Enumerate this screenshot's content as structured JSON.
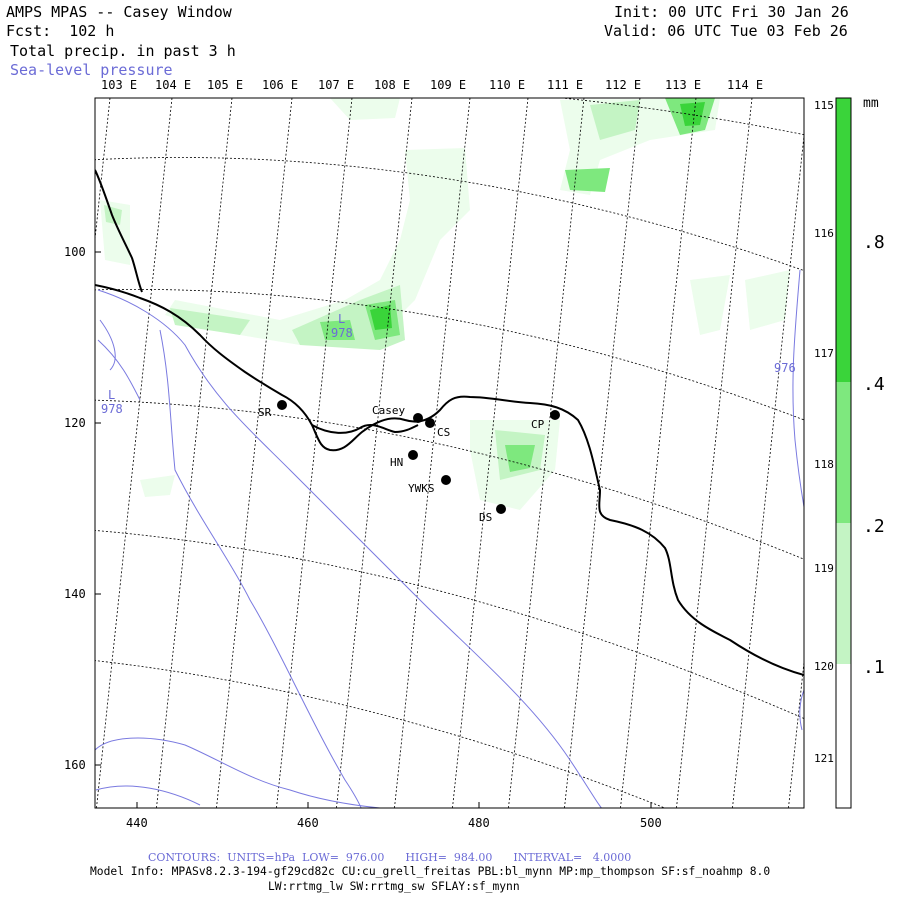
{
  "header": {
    "title": "AMPS MPAS -- Casey Window",
    "fcst": "Fcst:  102 h",
    "field": "Total precip. in past 3 h",
    "contour_field": "Sea-level pressure",
    "init": "Init: 00 UTC Fri 30 Jan 26",
    "valid": "Valid: 06 UTC Tue 03 Feb 26"
  },
  "map": {
    "lon_labels": [
      "103 E",
      "104 E",
      "105 E",
      "106 E",
      "107 E",
      "108 E",
      "109 E",
      "110 E",
      "111 E",
      "112 E",
      "113 E",
      "114 E"
    ],
    "lat_labels": [
      "115 E",
      "116 E",
      "117 E",
      "118 E",
      "119 E",
      "120 E",
      "121 E"
    ],
    "x_ticks": [
      "440",
      "460",
      "480",
      "500"
    ],
    "y_ticks": [
      "100",
      "120",
      "140",
      "160"
    ],
    "stations": [
      {
        "name": "Casey"
      },
      {
        "name": "CS"
      },
      {
        "name": "SR"
      },
      {
        "name": "CP"
      },
      {
        "name": "HN"
      },
      {
        "name": "YWKS"
      },
      {
        "name": "DS"
      }
    ],
    "lows": [
      {
        "symbol": "L",
        "value": "978"
      },
      {
        "symbol": "L",
        "value": "978"
      }
    ],
    "contour_label": "976"
  },
  "colorbar": {
    "unit": "mm",
    "labels": [
      ".8",
      ".4",
      ".2",
      ".1"
    ],
    "colors": [
      "#3ad43a",
      "#7ee87e",
      "#c4f4c4",
      "#ecfdec",
      "#ffffff"
    ]
  },
  "footer": {
    "contours": "CONTOURS:  UNITS=hPa  LOW=  976.00      HIGH=  984.00      INTERVAL=   4.0000",
    "model_info": "Model Info: MPASv8.2.3-194-gf29cd82c CU:cu_grell_freitas PBL:bl_mynn MP:mp_thompson SF:sf_noahmp 8.0",
    "model_info2": "LW:rrtmg_lw SW:rrtmg_sw SFLAY:sf_mynn"
  }
}
